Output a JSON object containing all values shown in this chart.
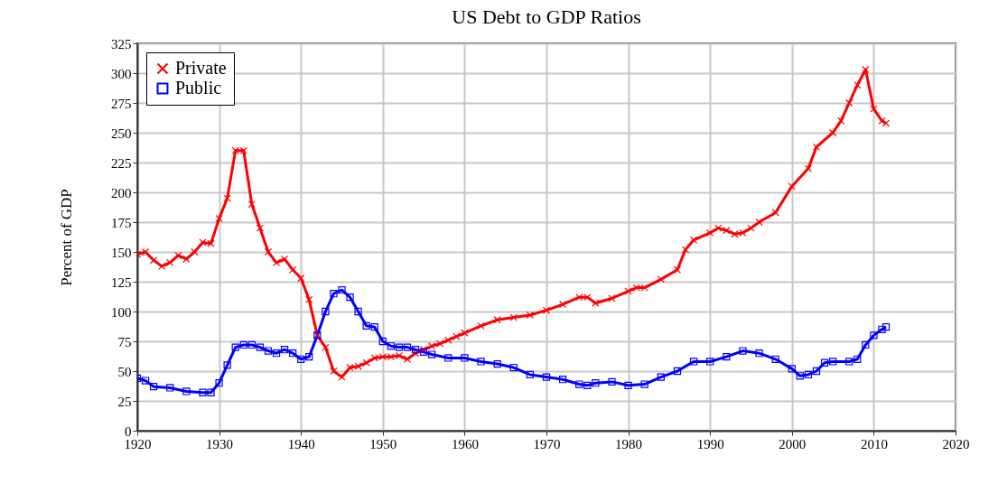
{
  "chart_data": {
    "type": "line",
    "title": "US Debt to GDP Ratios",
    "ylabel": "Percent of GDP",
    "xlim": [
      1920,
      2020
    ],
    "xticks": [
      1920,
      1930,
      1940,
      1950,
      1960,
      1970,
      1980,
      1990,
      2000,
      2010,
      2020
    ],
    "ylim": [
      0,
      325
    ],
    "yticks": [
      0,
      25,
      50,
      75,
      100,
      125,
      150,
      175,
      200,
      225,
      250,
      275,
      300,
      325
    ],
    "grid": true,
    "legend": "top left",
    "line_style": "solid",
    "series": [
      {
        "name": "Private",
        "color": "#ff0000",
        "marker": "cross",
        "x": [
          1920,
          1921,
          1922,
          1923,
          1924,
          1925,
          1926,
          1927,
          1928,
          1929,
          1930,
          1931,
          1932,
          1933,
          1934,
          1935,
          1936,
          1937,
          1938,
          1939,
          1940,
          1941,
          1942,
          1943,
          1944,
          1945,
          1946,
          1947,
          1948,
          1949,
          1950,
          1951,
          1952,
          1953,
          1954,
          1955,
          1956,
          1957,
          1958,
          1959,
          1960,
          1962,
          1964,
          1966,
          1968,
          1970,
          1972,
          1974,
          1975,
          1976,
          1978,
          1980,
          1981,
          1982,
          1984,
          1986,
          1987,
          1988,
          1990,
          1991,
          1992,
          1993,
          1994,
          1995,
          1996,
          1998,
          2000,
          2002,
          2003,
          2005,
          2006,
          2007,
          2008,
          2009,
          2010,
          2011,
          2011.5
        ],
        "values": [
          148,
          150,
          143,
          138,
          141,
          147,
          144,
          150,
          158,
          157,
          178,
          195,
          235,
          235,
          190,
          170,
          150,
          141,
          144,
          135,
          128,
          110,
          80,
          70,
          50,
          45,
          53,
          54,
          57,
          61,
          62,
          62,
          63,
          60,
          65,
          68,
          71,
          73,
          76,
          79,
          82,
          88,
          93,
          95,
          97,
          101,
          106,
          112,
          112,
          107,
          111,
          117,
          120,
          120,
          127,
          135,
          152,
          160,
          166,
          170,
          168,
          165,
          166,
          170,
          175,
          183,
          205,
          220,
          238,
          250,
          260,
          275,
          290,
          303,
          270,
          260,
          258
        ]
      },
      {
        "name": "Public",
        "color": "#0000ff",
        "marker": "square",
        "x": [
          1920,
          1921,
          1922,
          1924,
          1926,
          1928,
          1929,
          1930,
          1931,
          1932,
          1933,
          1934,
          1935,
          1936,
          1937,
          1938,
          1939,
          1940,
          1941,
          1942,
          1943,
          1944,
          1945,
          1946,
          1947,
          1948,
          1949,
          1950,
          1951,
          1952,
          1953,
          1954,
          1955,
          1956,
          1958,
          1960,
          1962,
          1964,
          1966,
          1968,
          1970,
          1972,
          1974,
          1975,
          1976,
          1978,
          1980,
          1982,
          1984,
          1986,
          1988,
          1990,
          1992,
          1994,
          1996,
          1998,
          2000,
          2001,
          2002,
          2003,
          2004,
          2005,
          2007,
          2008,
          2009,
          2010,
          2011,
          2011.5
        ],
        "values": [
          44,
          42,
          37,
          36,
          33,
          32,
          32,
          40,
          55,
          70,
          72,
          72,
          70,
          67,
          65,
          68,
          65,
          60,
          62,
          80,
          100,
          115,
          118,
          112,
          100,
          88,
          87,
          75,
          71,
          70,
          70,
          68,
          66,
          64,
          61,
          61,
          58,
          56,
          53,
          47,
          45,
          43,
          39,
          38,
          40,
          41,
          38,
          39,
          45,
          50,
          58,
          58,
          62,
          67,
          65,
          60,
          52,
          46,
          47,
          50,
          57,
          58,
          58,
          60,
          72,
          80,
          85,
          87
        ]
      }
    ]
  }
}
